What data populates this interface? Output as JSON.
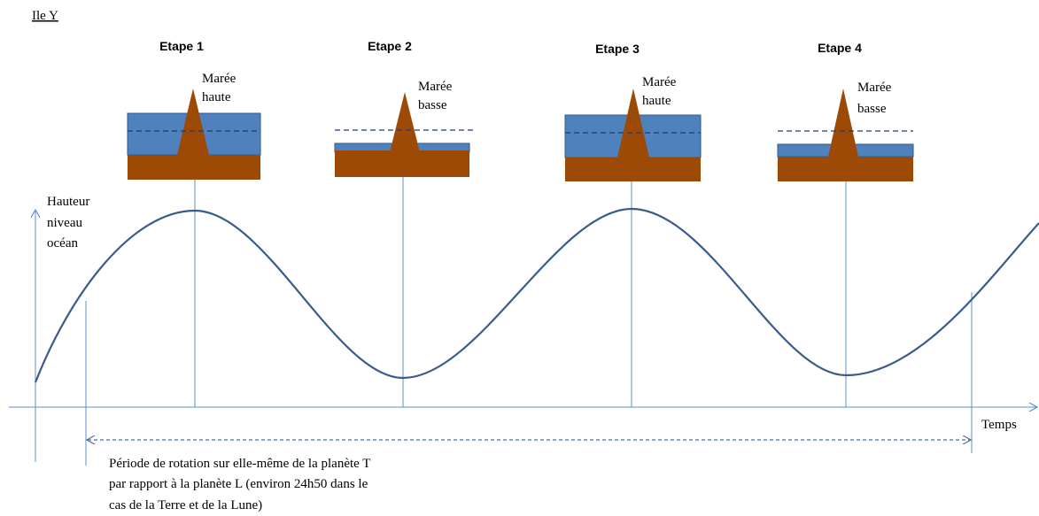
{
  "island": "Ile Y",
  "stages": [
    {
      "title": "Etape 1",
      "tide": [
        "Marée",
        "haute"
      ]
    },
    {
      "title": "Etape 2",
      "tide": [
        "Marée",
        "basse"
      ]
    },
    {
      "title": "Etape 3",
      "tide": [
        "Marée",
        "haute"
      ]
    },
    {
      "title": "Etape 4",
      "tide": [
        "Marée",
        "basse"
      ]
    }
  ],
  "y_axis_label": [
    "Hauteur",
    "niveau",
    "océan"
  ],
  "x_axis_label": "Temps",
  "period_note": [
    "Période de rotation sur elle-même de la planète T",
    "par rapport à la planète L (environ 24h50 dans le",
    "cas de la Terre et de la Lune)"
  ]
}
